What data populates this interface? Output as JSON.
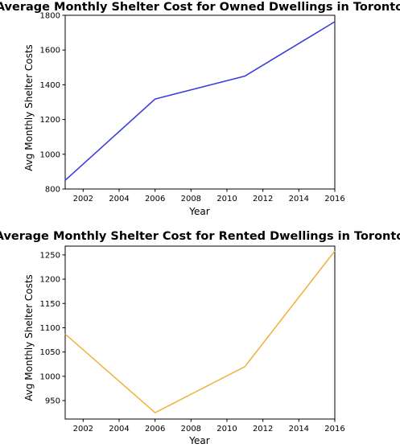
{
  "chart_data": [
    {
      "type": "line",
      "title": "Average Monthly Shelter Cost for Owned Dwellings in Toronto",
      "xlabel": "Year",
      "ylabel": "Avg Monthly Shelter Costs",
      "xlim": [
        2001,
        2016
      ],
      "ylim": [
        800,
        1800
      ],
      "xticks": [
        2002,
        2004,
        2006,
        2008,
        2010,
        2012,
        2014,
        2016
      ],
      "yticks": [
        800,
        1000,
        1200,
        1400,
        1600,
        1800
      ],
      "grid": false,
      "color": "#3a3ddf",
      "series": [
        {
          "x": [
            2001,
            2006,
            2011,
            2016
          ],
          "y": [
            850,
            1318,
            1450,
            1763
          ]
        }
      ]
    },
    {
      "type": "line",
      "title": "Average Monthly Shelter Cost for Rented Dwellings in Toronto",
      "xlabel": "Year",
      "ylabel": "Avg Monthly Shelter Costs",
      "xlim": [
        2001,
        2016
      ],
      "ylim": [
        912,
        1268
      ],
      "xticks": [
        2002,
        2004,
        2006,
        2008,
        2010,
        2012,
        2014,
        2016
      ],
      "yticks": [
        950,
        1000,
        1050,
        1100,
        1150,
        1200,
        1250
      ],
      "grid": false,
      "color": "#f0b443",
      "series": [
        {
          "x": [
            2001,
            2006,
            2011,
            2016
          ],
          "y": [
            1087,
            925,
            1020,
            1258
          ]
        }
      ]
    }
  ]
}
